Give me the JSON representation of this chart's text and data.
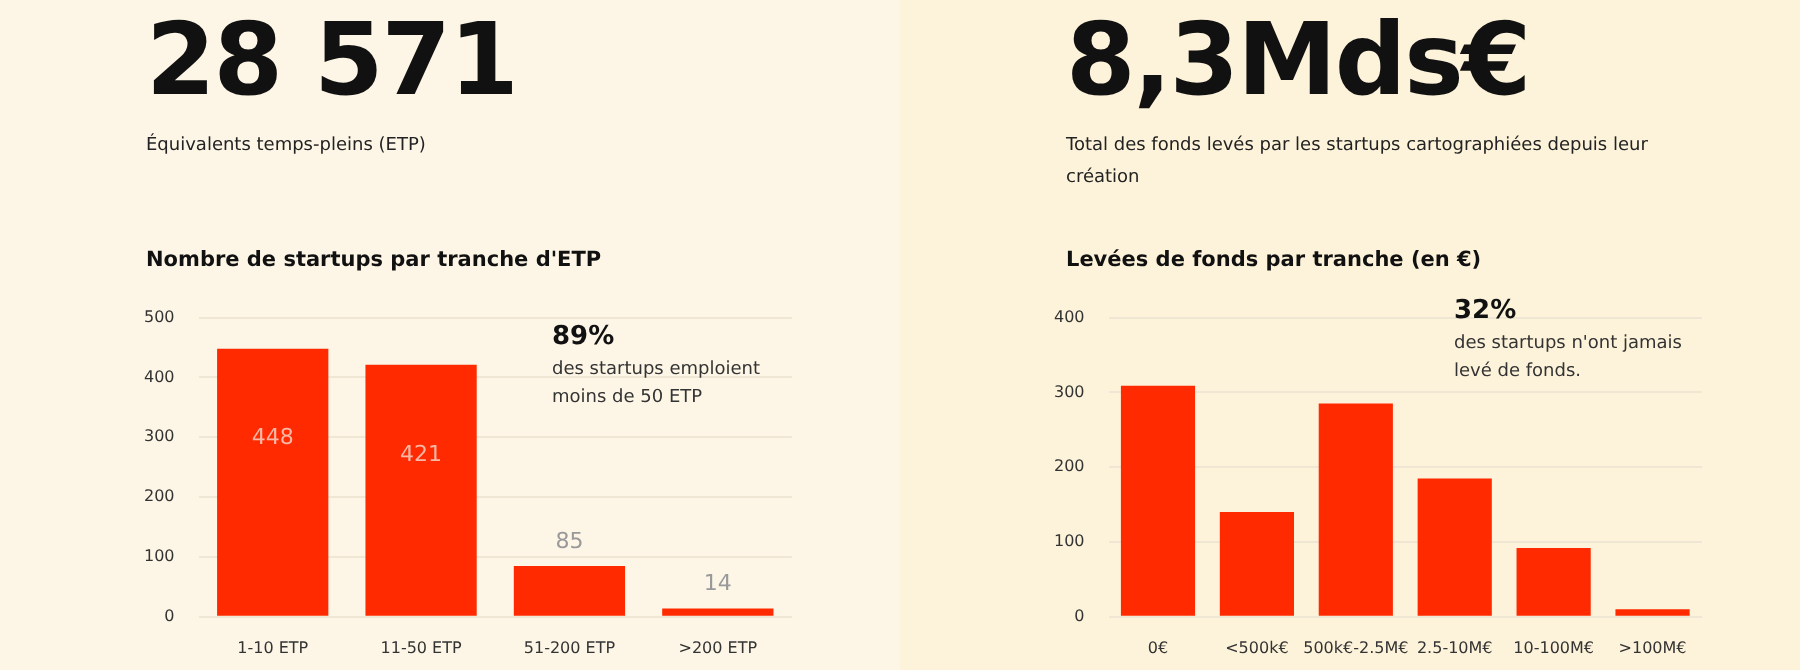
{
  "chart_data": [
    {
      "type": "bar",
      "title": "Nombre de startups par tranche d'ETP",
      "annotations": [
        "28 571",
        "Équivalents temps-pleins (ETP)",
        "89%",
        "des startups emploient moins de 50 ETP"
      ],
      "categories": [
        "1-10 ETP",
        "11-50 ETP",
        "51-200 ETP",
        ">200 ETP"
      ],
      "values": [
        448,
        421,
        85,
        14
      ],
      "color": "#ff2a00",
      "ylim": [
        0,
        500
      ],
      "yticks": [
        0,
        100,
        200,
        300,
        400,
        500
      ],
      "grid": "y",
      "legend": false,
      "data_labels": true
    },
    {
      "type": "bar",
      "title": "Levées de fonds par tranche (en €)",
      "annotations": [
        "8,3Mds€",
        "Total des fonds levés par les startups cartographiées depuis leur création",
        "32%",
        "des startups n'ont jamais levé de fonds."
      ],
      "categories": [
        "0€",
        "<500k€",
        "500k€-2.5M€",
        "2.5-10M€",
        "10-100M€",
        ">100M€"
      ],
      "values": [
        309,
        140,
        285,
        185,
        92,
        10
      ],
      "color": "#ff2a00",
      "ylim": [
        0,
        400
      ],
      "yticks": [
        0,
        100,
        200,
        300,
        400
      ],
      "grid": "y",
      "legend": false
    }
  ]
}
